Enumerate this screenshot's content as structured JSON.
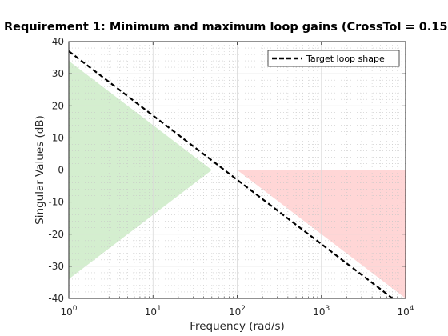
{
  "chart_data": {
    "type": "area",
    "title": "Requirement 1: Minimum and maximum loop gains (CrossTol = 0.15",
    "xlabel": "Frequency (rad/s)",
    "ylabel": "Singular Values (dB)",
    "xscale": "log",
    "xlim": [
      1,
      10000
    ],
    "ylim": [
      -40,
      40
    ],
    "grid": true,
    "minor_grid": true,
    "legend_position": "top-right",
    "x_ticks": [
      {
        "value": 1,
        "base": "10",
        "exp": "0"
      },
      {
        "value": 10,
        "base": "10",
        "exp": "1"
      },
      {
        "value": 100,
        "base": "10",
        "exp": "2"
      },
      {
        "value": 1000,
        "base": "10",
        "exp": "3"
      },
      {
        "value": 10000,
        "base": "10",
        "exp": "4"
      }
    ],
    "y_ticks": [
      {
        "value": -40,
        "label": "-40"
      },
      {
        "value": -30,
        "label": "-30"
      },
      {
        "value": -20,
        "label": "-20"
      },
      {
        "value": -10,
        "label": "-10"
      },
      {
        "value": 0,
        "label": "0"
      },
      {
        "value": 10,
        "label": "10"
      },
      {
        "value": 20,
        "label": "20"
      },
      {
        "value": 30,
        "label": "30"
      },
      {
        "value": 40,
        "label": "40"
      }
    ],
    "series": [
      {
        "name": "Target loop shape",
        "kind": "line",
        "style": "dashed",
        "color": "#000000",
        "x": [
          1,
          7000
        ],
        "y": [
          37,
          -40
        ]
      }
    ],
    "regions": [
      {
        "kind": "min-gain-region",
        "color": "#d4eecf",
        "x": [
          1,
          50,
          1
        ],
        "y": [
          34,
          0,
          -34
        ]
      },
      {
        "kind": "max-gain-region",
        "color": "#ffd6d6",
        "x": [
          100,
          10000,
          10000
        ],
        "y": [
          0,
          0,
          -40
        ]
      }
    ]
  }
}
